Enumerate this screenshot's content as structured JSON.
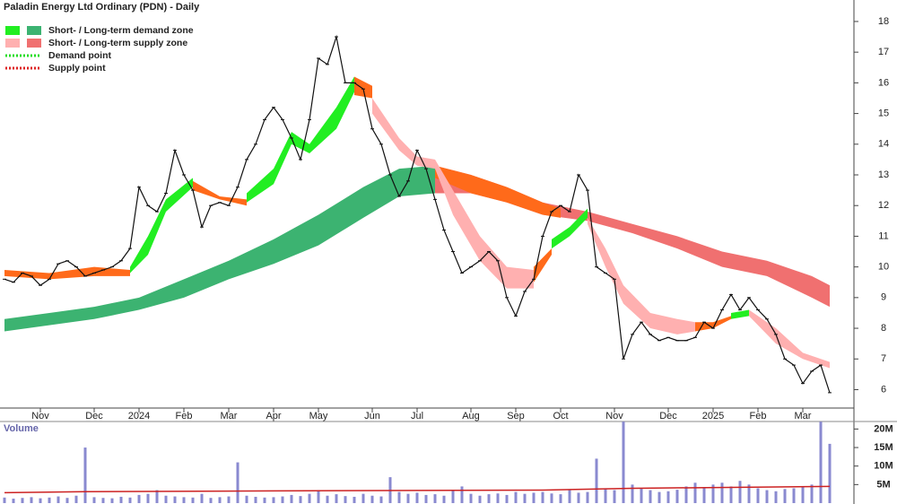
{
  "chart_data": [
    {
      "type": "line",
      "title": "Paladin Energy Ltd Ordinary (PDN) - Daily",
      "legend": [
        {
          "label": "Short- / Long-term demand zone",
          "colors": [
            "#22ee22",
            "#3cb371"
          ]
        },
        {
          "label": "Short- / Long-term supply zone",
          "colors": [
            "#ffb0b0",
            "#f07070"
          ]
        },
        {
          "label": "Demand point",
          "color": "#22dd22"
        },
        {
          "label": "Supply point",
          "color": "#dd2222"
        }
      ],
      "categories": [
        null,
        null,
        null,
        null,
        "Nov",
        null,
        null,
        null,
        null,
        null,
        "Dec",
        null,
        null,
        null,
        null,
        "2024",
        null,
        null,
        null,
        null,
        "Feb",
        null,
        null,
        null,
        null,
        "Mar",
        null,
        null,
        null,
        null,
        "Apr",
        null,
        null,
        null,
        null,
        "May",
        null,
        null,
        null,
        null,
        null,
        "Jun",
        null,
        null,
        null,
        null,
        "Jul",
        null,
        null,
        null,
        null,
        null,
        "Aug",
        null,
        null,
        null,
        null,
        "Sep",
        null,
        null,
        null,
        null,
        "Oct",
        null,
        null,
        null,
        null,
        null,
        "Nov",
        null,
        null,
        null,
        null,
        null,
        "Dec",
        null,
        null,
        null,
        null,
        "2025",
        null,
        null,
        null,
        null,
        "Feb",
        null,
        null,
        null,
        null,
        "Mar",
        null,
        null,
        null
      ],
      "series": [
        {
          "name": "PDN",
          "color": "#111111",
          "values": [
            9.6,
            9.5,
            9.8,
            9.7,
            9.4,
            9.6,
            10.1,
            10.2,
            10.0,
            9.7,
            9.8,
            9.9,
            10.0,
            10.2,
            10.6,
            12.6,
            12.0,
            11.8,
            12.4,
            13.8,
            13.0,
            12.5,
            11.3,
            12.0,
            12.1,
            12.0,
            12.6,
            13.5,
            14.0,
            14.8,
            15.2,
            14.8,
            14.2,
            13.5,
            14.8,
            16.8,
            16.6,
            17.5,
            16.0,
            16.0,
            15.8,
            14.5,
            14.0,
            13.0,
            12.3,
            12.8,
            13.8,
            13.2,
            12.2,
            11.2,
            10.5,
            9.8,
            10.0,
            10.2,
            10.5,
            10.2,
            9.0,
            8.4,
            9.2,
            9.6,
            11.0,
            11.8,
            12.0,
            11.8,
            13.0,
            12.5,
            10.0,
            9.8,
            9.6,
            7.0,
            7.8,
            8.2,
            7.8,
            7.6,
            7.7,
            7.6,
            7.6,
            7.7,
            8.2,
            8.0,
            8.6,
            9.1,
            8.6,
            9.0,
            8.6,
            8.3,
            7.8,
            7.0,
            6.8,
            6.2,
            6.6,
            6.8,
            5.9
          ]
        }
      ],
      "zones": [
        {
          "color": "#3cb371",
          "index": [
            0,
            5,
            10,
            15,
            20,
            25,
            30,
            35,
            40,
            44,
            48
          ],
          "upper": [
            8.3,
            8.5,
            8.7,
            9.0,
            9.6,
            10.2,
            10.9,
            11.7,
            12.6,
            13.2,
            13.3
          ],
          "lower": [
            7.9,
            8.1,
            8.3,
            8.6,
            9.0,
            9.6,
            10.1,
            10.7,
            11.6,
            12.3,
            12.4
          ]
        },
        {
          "color": "#f07070",
          "index": [
            48,
            52,
            56,
            60,
            65,
            70,
            75,
            80,
            85,
            90,
            92
          ],
          "upper": [
            13.3,
            13.0,
            12.6,
            12.1,
            11.8,
            11.4,
            11.0,
            10.5,
            10.2,
            9.7,
            9.4
          ],
          "lower": [
            12.4,
            12.4,
            12.1,
            11.7,
            11.5,
            11.1,
            10.6,
            10.0,
            9.7,
            9.0,
            8.7
          ]
        },
        {
          "color": "#ff6a1a",
          "index": [
            48,
            52,
            56,
            60,
            62
          ],
          "upper": [
            13.3,
            13.0,
            12.6,
            12.1,
            11.9
          ],
          "lower": [
            12.9,
            12.4,
            12.1,
            11.7,
            11.6
          ]
        },
        {
          "color": "#ff6a1a",
          "index": [
            0,
            5,
            10,
            14
          ],
          "upper": [
            9.9,
            9.8,
            10.0,
            9.9
          ],
          "lower": [
            9.7,
            9.6,
            9.7,
            9.7
          ]
        },
        {
          "color": "#22ee22",
          "index": [
            14,
            16,
            18,
            21
          ],
          "upper": [
            10.0,
            11.0,
            12.2,
            12.9
          ],
          "lower": [
            9.8,
            10.4,
            11.8,
            12.6
          ]
        },
        {
          "color": "#ff6a1a",
          "index": [
            21,
            24,
            27
          ],
          "upper": [
            12.8,
            12.3,
            12.2
          ],
          "lower": [
            12.5,
            12.2,
            12.0
          ]
        },
        {
          "color": "#22ee22",
          "index": [
            27,
            30,
            32,
            34,
            37,
            39
          ],
          "upper": [
            12.4,
            13.2,
            14.4,
            14.0,
            15.2,
            16.2
          ],
          "lower": [
            12.1,
            12.7,
            14.0,
            13.7,
            14.5,
            15.7
          ]
        },
        {
          "color": "#ff6a1a",
          "index": [
            39,
            41
          ],
          "upper": [
            16.2,
            15.9
          ],
          "lower": [
            15.6,
            15.5
          ]
        },
        {
          "color": "#ffb0b0",
          "index": [
            41,
            44,
            46,
            48,
            50,
            53,
            56,
            59
          ],
          "upper": [
            15.5,
            14.2,
            13.6,
            13.5,
            12.5,
            11.0,
            10.0,
            9.9
          ],
          "lower": [
            15.0,
            13.8,
            13.3,
            13.2,
            11.7,
            10.2,
            9.3,
            9.3
          ]
        },
        {
          "color": "#ff6a1a",
          "index": [
            59,
            61
          ],
          "upper": [
            10.0,
            10.6
          ],
          "lower": [
            9.5,
            10.4
          ]
        },
        {
          "color": "#22ee22",
          "index": [
            61,
            63,
            65
          ],
          "upper": [
            10.9,
            11.3,
            11.9
          ],
          "lower": [
            10.6,
            11.0,
            11.6
          ]
        },
        {
          "color": "#ffb0b0",
          "index": [
            65,
            67,
            69,
            72,
            75,
            77
          ],
          "upper": [
            11.6,
            10.6,
            9.4,
            8.5,
            8.3,
            8.2
          ],
          "lower": [
            11.4,
            10.0,
            8.8,
            8.0,
            7.8,
            7.9
          ]
        },
        {
          "color": "#ff6a1a",
          "index": [
            77,
            79,
            81
          ],
          "upper": [
            8.2,
            8.2,
            8.4
          ],
          "lower": [
            7.9,
            8.0,
            8.3
          ]
        },
        {
          "color": "#22ee22",
          "index": [
            81,
            83
          ],
          "upper": [
            8.5,
            8.6
          ],
          "lower": [
            8.3,
            8.4
          ]
        },
        {
          "color": "#ffb0b0",
          "index": [
            83,
            86,
            89,
            92
          ],
          "upper": [
            8.6,
            8.0,
            7.2,
            6.9
          ],
          "lower": [
            8.4,
            7.5,
            7.0,
            6.7
          ]
        }
      ],
      "ylim": [
        5.4,
        18.7
      ],
      "yticks": [
        6,
        7,
        8,
        9,
        10,
        11,
        12,
        13,
        14,
        15,
        16,
        17,
        18
      ]
    },
    {
      "type": "bar",
      "title": "Volume",
      "color": "#8a8ad0",
      "values": [
        1.5,
        1.2,
        1.4,
        1.6,
        1.3,
        1.5,
        1.8,
        1.4,
        2.0,
        15.0,
        1.6,
        1.4,
        1.3,
        1.7,
        1.5,
        2.2,
        2.5,
        3.5,
        2.0,
        1.8,
        1.6,
        1.5,
        2.5,
        1.4,
        1.6,
        1.8,
        11.0,
        2.0,
        1.7,
        1.5,
        1.6,
        1.8,
        2.2,
        1.9,
        2.5,
        3.2,
        2.0,
        2.4,
        1.9,
        1.7,
        2.5,
        2.0,
        1.8,
        7.0,
        3.0,
        2.5,
        2.8,
        2.2,
        2.4,
        2.0,
        3.5,
        4.5,
        2.5,
        2.0,
        2.4,
        2.6,
        2.2,
        3.0,
        2.5,
        2.8,
        3.0,
        2.6,
        2.4,
        3.5,
        2.8,
        3.0,
        12.0,
        4.0,
        3.5,
        22.0,
        5.0,
        4.0,
        3.5,
        3.0,
        3.2,
        3.6,
        4.5,
        5.5,
        4.0,
        5.0,
        5.5,
        4.5,
        6.0,
        5.0,
        4.0,
        3.5,
        3.2,
        3.8,
        4.0,
        4.5,
        5.0,
        22.0,
        16.0
      ],
      "average": {
        "color": "#cc2222",
        "index": [
          0,
          9,
          30,
          60,
          70,
          92
        ],
        "values": [
          2.8,
          3.1,
          3.3,
          3.5,
          4.0,
          4.5
        ]
      },
      "ylim": [
        0,
        23
      ],
      "yticks": [
        {
          "value": 5,
          "label": "5M"
        },
        {
          "value": 10,
          "label": "10M"
        },
        {
          "value": 15,
          "label": "15M"
        },
        {
          "value": 20,
          "label": "20M"
        }
      ]
    }
  ]
}
